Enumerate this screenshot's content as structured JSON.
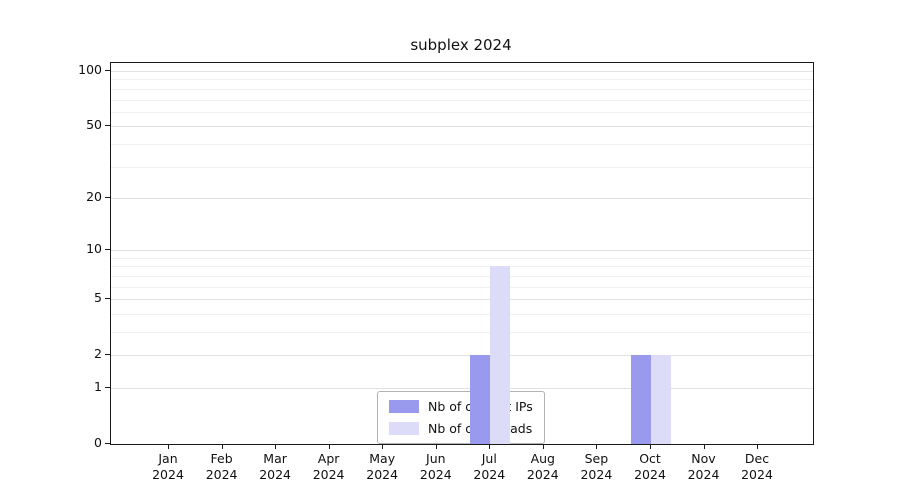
{
  "chart_data": {
    "type": "bar",
    "title": "subplex 2024",
    "categories": [
      "Jan",
      "Feb",
      "Mar",
      "Apr",
      "May",
      "Jun",
      "Jul",
      "Aug",
      "Sep",
      "Oct",
      "Nov",
      "Dec"
    ],
    "year": "2024",
    "series": [
      {
        "name": "Nb of distinct IPs",
        "color": "#9999ee",
        "values": [
          0,
          0,
          0,
          0,
          0,
          0,
          2,
          0,
          0,
          2,
          0,
          0
        ]
      },
      {
        "name": "Nb of downloads",
        "color": "#dcdcf9",
        "values": [
          0,
          0,
          0,
          0,
          0,
          0,
          8,
          0,
          0,
          2,
          0,
          0
        ]
      }
    ],
    "yscale": "log1p",
    "yticks": [
      0,
      1,
      2,
      5,
      10,
      20,
      50,
      100
    ],
    "grid_values": [
      1,
      2,
      3,
      4,
      5,
      6,
      7,
      8,
      9,
      10,
      20,
      30,
      40,
      50,
      60,
      70,
      80,
      90,
      100
    ],
    "ylim": [
      0,
      110
    ],
    "grid": true,
    "legend_position": "bottom-center"
  }
}
